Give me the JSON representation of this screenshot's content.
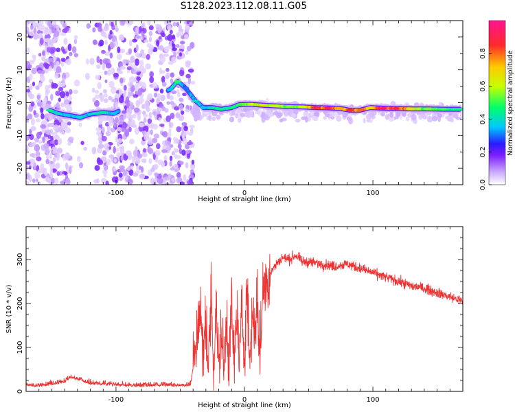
{
  "title": "S128.2023.112.08.11.G05",
  "colors": {
    "snr_line": "#ee3333",
    "axes": "#000000",
    "background": "#ffffff"
  },
  "chart_data": [
    {
      "type": "heatmap",
      "xlabel": "Height of straight line (km)",
      "ylabel": "Frequency (Hz)",
      "xlim": [
        -170,
        170
      ],
      "ylim": [
        -25,
        25
      ],
      "x_ticks": [
        -100,
        0,
        100
      ],
      "y_ticks": [
        -20,
        -10,
        0,
        10,
        20
      ],
      "colorbar": {
        "label": "Normalized spectral amplitude",
        "range": [
          0,
          1
        ],
        "ticks": [
          "0.0",
          "0.2",
          "0.4",
          "0.6",
          "0.8"
        ],
        "colors": [
          "#ffffff",
          "#c9a6ff",
          "#7b1fff",
          "#2a1bff",
          "#00c8ff",
          "#00ff6a",
          "#c8ff00",
          "#ffc800",
          "#ff2a2a",
          "#ff1493"
        ]
      },
      "ridge": [
        {
          "x": -152,
          "y": -2.3,
          "level": 0.45
        },
        {
          "x": -145,
          "y": -3.3,
          "level": 0.4
        },
        {
          "x": -138,
          "y": -3.8,
          "level": 0.35
        },
        {
          "x": -128,
          "y": -4.5,
          "level": 0.4
        },
        {
          "x": -120,
          "y": -3.5,
          "level": 0.38
        },
        {
          "x": -110,
          "y": -3.0,
          "level": 0.42
        },
        {
          "x": -102,
          "y": -3.3,
          "level": 0.35
        },
        {
          "x": -58,
          "y": 4.0,
          "level": 0.35
        },
        {
          "x": -52,
          "y": 6.5,
          "level": 0.5
        },
        {
          "x": -46,
          "y": 4.5,
          "level": 0.3
        },
        {
          "x": -38,
          "y": 0.5,
          "level": 0.4
        },
        {
          "x": -32,
          "y": -1.5,
          "level": 0.35
        },
        {
          "x": -25,
          "y": -1.5,
          "level": 0.4
        },
        {
          "x": -18,
          "y": -2.0,
          "level": 0.45
        },
        {
          "x": -10,
          "y": -1.5,
          "level": 0.45
        },
        {
          "x": -4,
          "y": -0.6,
          "level": 0.5
        },
        {
          "x": 5,
          "y": -0.5,
          "level": 0.6
        },
        {
          "x": 15,
          "y": -0.8,
          "level": 0.65
        },
        {
          "x": 25,
          "y": -1.0,
          "level": 0.6
        },
        {
          "x": 35,
          "y": -1.2,
          "level": 0.55
        },
        {
          "x": 45,
          "y": -1.3,
          "level": 0.6
        },
        {
          "x": 55,
          "y": -1.5,
          "level": 0.9
        },
        {
          "x": 65,
          "y": -1.6,
          "level": 0.9
        },
        {
          "x": 75,
          "y": -1.8,
          "level": 0.75
        },
        {
          "x": 82,
          "y": -2.3,
          "level": 0.85
        },
        {
          "x": 90,
          "y": -2.3,
          "level": 0.8
        },
        {
          "x": 98,
          "y": -1.5,
          "level": 0.7
        },
        {
          "x": 108,
          "y": -1.7,
          "level": 0.95
        },
        {
          "x": 118,
          "y": -1.8,
          "level": 0.9
        },
        {
          "x": 130,
          "y": -1.9,
          "level": 0.65
        },
        {
          "x": 142,
          "y": -1.9,
          "level": 0.55
        },
        {
          "x": 155,
          "y": -2.0,
          "level": 0.5
        },
        {
          "x": 168,
          "y": -2.0,
          "level": 0.45
        }
      ]
    },
    {
      "type": "line",
      "xlabel": "Height of straight line (km)",
      "ylabel": "SNR (10 * v/v)",
      "xlim": [
        -170,
        170
      ],
      "ylim": [
        0,
        375
      ],
      "x_ticks": [
        -100,
        0,
        100
      ],
      "y_ticks": [
        0,
        100,
        200,
        300
      ],
      "series": [
        {
          "x": [
            -170,
            -160,
            -150,
            -140,
            -135,
            -130,
            -120,
            -110,
            -100,
            -90,
            -80,
            -70,
            -60,
            -50,
            -42,
            -38,
            -35,
            -32,
            -30,
            -28,
            -26,
            -24,
            -22,
            -20,
            -18,
            -16,
            -14,
            -12,
            -10,
            -8,
            -6,
            -4,
            -2,
            0,
            2,
            4,
            6,
            8,
            10,
            12,
            14,
            16,
            18,
            20,
            25,
            30,
            35,
            40,
            45,
            50,
            60,
            70,
            80,
            90,
            100,
            110,
            120,
            130,
            140,
            150,
            160,
            170
          ],
          "y": [
            12,
            10,
            14,
            20,
            30,
            25,
            15,
            14,
            12,
            11,
            10,
            12,
            11,
            11,
            12,
            90,
            200,
            70,
            180,
            40,
            230,
            60,
            190,
            50,
            150,
            40,
            180,
            60,
            200,
            45,
            190,
            70,
            180,
            90,
            250,
            60,
            180,
            140,
            210,
            70,
            220,
            240,
            250,
            270,
            290,
            305,
            300,
            310,
            295,
            295,
            290,
            285,
            290,
            280,
            270,
            260,
            250,
            240,
            235,
            225,
            215,
            205
          ]
        }
      ]
    }
  ]
}
